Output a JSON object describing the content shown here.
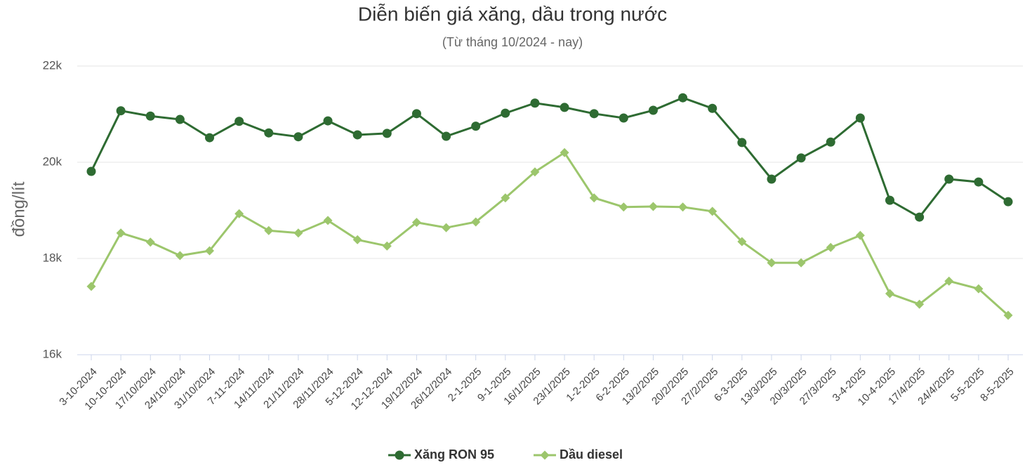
{
  "chart_data": {
    "type": "line",
    "title": "Diễn biến giá xăng, dầu trong nước",
    "subtitle": "(Từ tháng 10/2024 - nay)",
    "y_label": "đồng/lít",
    "categories": [
      "3-10-2024",
      "10-10-2024",
      "17/10/2024",
      "24/10/2024",
      "31/10/2024",
      "7-11-2024",
      "14/11/2024",
      "21/11/2024",
      "28/11/2024",
      "5-12-2024",
      "12-12-2024",
      "19/12/2024",
      "26/12/2024",
      "2-1-2025",
      "9-1-2025",
      "16/1/2025",
      "23/1/2025",
      "1-2-2025",
      "6-2-2025",
      "13/2/2025",
      "20/2/2025",
      "27/2/2025",
      "6-3-2025",
      "13/3/2025",
      "20/3/2025",
      "27/3/2025",
      "3-4-2025",
      "10-4-2025",
      "17/4/2025",
      "24/4/2025",
      "5-5-2025",
      "8-5-2025"
    ],
    "series": [
      {
        "name": "Xăng RON 95",
        "color": "#2e6b32",
        "marker": "circle",
        "values": [
          19810,
          21070,
          20960,
          20890,
          20510,
          20850,
          20610,
          20530,
          20860,
          20570,
          20600,
          21010,
          20540,
          20750,
          21020,
          21230,
          21140,
          21010,
          20920,
          21080,
          21340,
          21120,
          20410,
          19650,
          20090,
          20420,
          20920,
          19210,
          18860,
          19650,
          19590,
          19180
        ]
      },
      {
        "name": "Dầu diesel",
        "color": "#9cc66c",
        "marker": "diamond",
        "values": [
          17420,
          18530,
          18340,
          18060,
          18160,
          18930,
          18580,
          18530,
          18790,
          18390,
          18260,
          18750,
          18640,
          18760,
          19260,
          19800,
          20200,
          19260,
          19070,
          19080,
          19070,
          18980,
          18350,
          17910,
          17910,
          18230,
          18480,
          17270,
          17050,
          17530,
          17370,
          16820
        ]
      }
    ],
    "ylim": [
      16000,
      22000
    ],
    "yticks": [
      {
        "value": 16000,
        "label": "16k"
      },
      {
        "value": 18000,
        "label": "18k"
      },
      {
        "value": 20000,
        "label": "20k"
      },
      {
        "value": 22000,
        "label": "22k"
      }
    ],
    "grid": true
  }
}
